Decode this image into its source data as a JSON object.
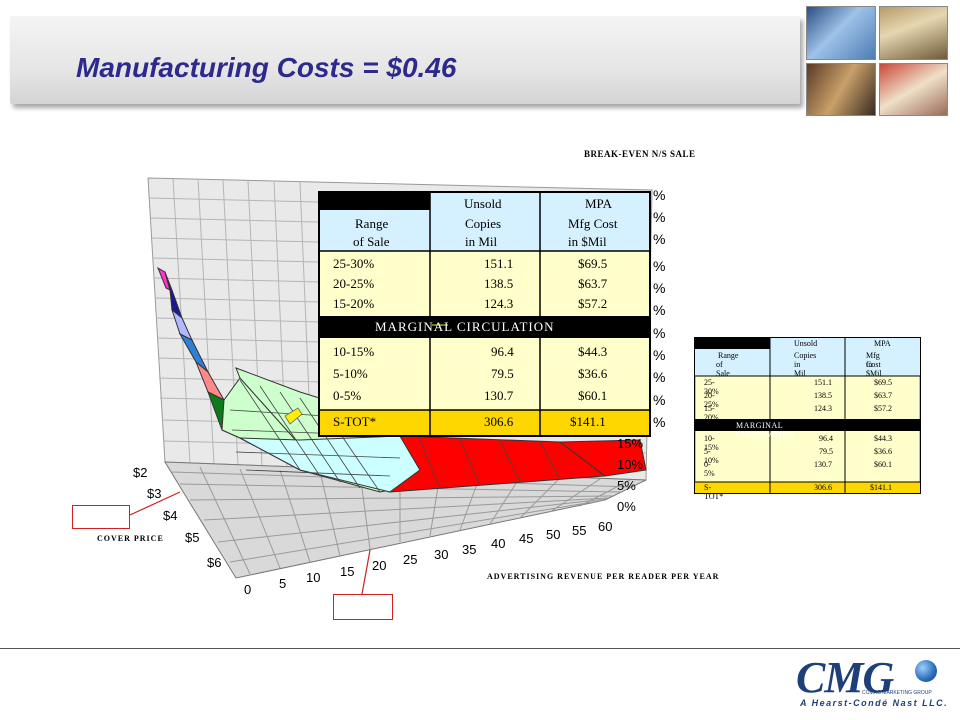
{
  "slide": {
    "title": "Manufacturing Costs = $0.46"
  },
  "chart_labels": {
    "top_title": "BREAK-EVEN N/S SALE",
    "y_axis_title": "COVER PRICE",
    "x_axis_title": "ADVERTISING REVENUE PER READER PER YEAR",
    "x_ticks": [
      "0",
      "5",
      "10",
      "15",
      "20",
      "25",
      "30",
      "35",
      "40",
      "45",
      "50",
      "55",
      "60"
    ],
    "price_ticks": [
      "$2",
      "$3",
      "$4",
      "$5",
      "$6"
    ],
    "pct_ticks": [
      "0%",
      "5%",
      "10%",
      "15%"
    ],
    "right_pct_fragments": [
      "%",
      "%",
      "%",
      "%",
      "%",
      "%",
      "%",
      "%",
      "%",
      "%",
      "%"
    ]
  },
  "table": {
    "headers": [
      [
        "Range",
        "of Sale"
      ],
      [
        "Unsold",
        "Copies",
        "in Mil"
      ],
      [
        "MPA",
        "Mfg Cost",
        "in $Mil"
      ]
    ],
    "rows_top": [
      [
        "25-30%",
        "151.1",
        "$69.5"
      ],
      [
        "20-25%",
        "138.5",
        "$63.7"
      ],
      [
        "15-20%",
        "124.3",
        "$57.2"
      ]
    ],
    "section_label": "MARGINAL CIRCULATION",
    "rows_marginal": [
      [
        "10-15%",
        "96.4",
        "$44.3"
      ],
      [
        "5-10%",
        "79.5",
        "$36.6"
      ],
      [
        "0-5%",
        "130.7",
        "$60.1"
      ]
    ],
    "total": [
      "S-TOT*",
      "306.6",
      "$141.1"
    ]
  },
  "footer": {
    "logo_text": "CMG",
    "logo_sub": "COMAG MARKETING GROUP",
    "tagline": "A Hearst-Condé Nast LLC."
  },
  "colors": {
    "title": "#2d2a8c",
    "table_header_bg": "#d5f0ff",
    "table_body_bg": "#ffffcc",
    "total_bg": "#ffd700",
    "surface_red": "#ff0000"
  }
}
